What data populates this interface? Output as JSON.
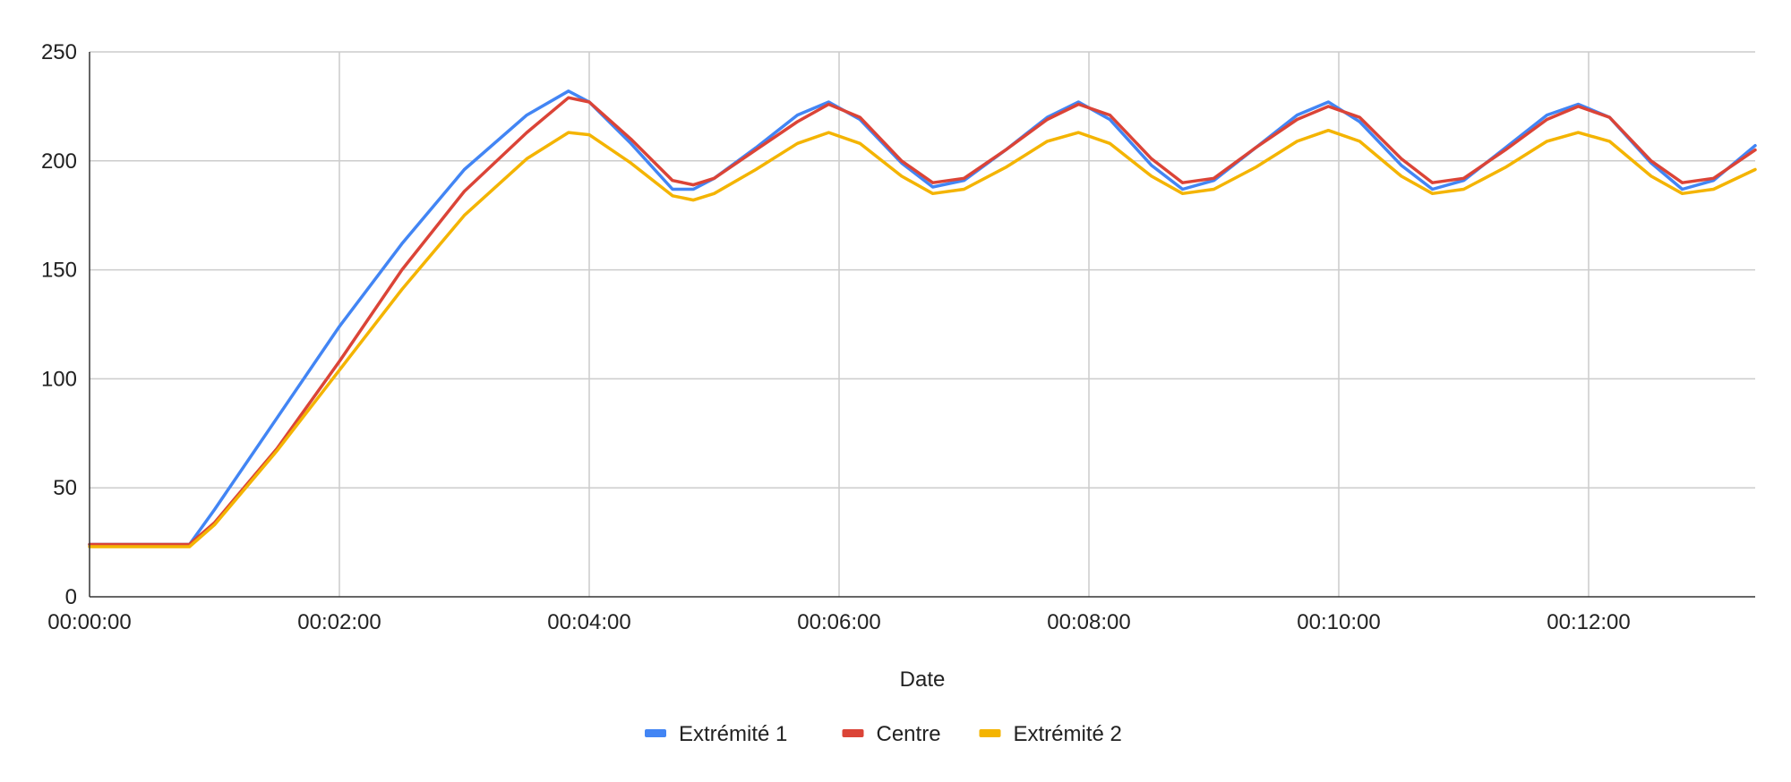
{
  "chart_data": {
    "type": "line",
    "title": "",
    "xlabel": "Date",
    "ylabel": "",
    "x_unit": "time (hh:mm:ss)",
    "xlim": [
      "00:00:00",
      "00:13:20"
    ],
    "ylim": [
      0,
      250
    ],
    "x_ticks": [
      "00:00:00",
      "00:02:00",
      "00:04:00",
      "00:06:00",
      "00:08:00",
      "00:10:00",
      "00:12:00"
    ],
    "y_ticks": [
      "0",
      "50",
      "100",
      "150",
      "200",
      "250"
    ],
    "grid": true,
    "legend_position": "bottom",
    "x": [
      "00:00:00",
      "00:00:45",
      "00:00:48",
      "00:01:00",
      "00:01:30",
      "00:02:00",
      "00:02:30",
      "00:03:00",
      "00:03:30",
      "00:03:50",
      "00:04:00",
      "00:04:20",
      "00:04:40",
      "00:04:50",
      "00:05:00",
      "00:05:20",
      "00:05:40",
      "00:05:55",
      "00:06:10",
      "00:06:30",
      "00:06:45",
      "00:07:00",
      "00:07:20",
      "00:07:40",
      "00:07:55",
      "00:08:10",
      "00:08:30",
      "00:08:45",
      "00:09:00",
      "00:09:20",
      "00:09:40",
      "00:09:55",
      "00:10:10",
      "00:10:30",
      "00:10:45",
      "00:11:00",
      "00:11:20",
      "00:11:40",
      "00:11:55",
      "00:12:10",
      "00:12:30",
      "00:12:45",
      "00:13:00",
      "00:13:20"
    ],
    "series": [
      {
        "name": "Extrémité 1",
        "color": "#4285F4",
        "values": [
          24,
          24,
          24,
          40,
          82,
          124,
          162,
          196,
          221,
          232,
          227,
          208,
          187,
          187,
          192,
          206,
          221,
          227,
          219,
          199,
          188,
          191,
          205,
          220,
          227,
          219,
          198,
          187,
          191,
          206,
          221,
          227,
          218,
          198,
          187,
          191,
          206,
          221,
          226,
          220,
          199,
          187,
          191,
          207
        ]
      },
      {
        "name": "Centre",
        "color": "#DB4437",
        "values": [
          24,
          24,
          24,
          34,
          68,
          108,
          150,
          186,
          213,
          229,
          227,
          210,
          191,
          189,
          192,
          205,
          218,
          226,
          220,
          200,
          190,
          192,
          205,
          219,
          226,
          221,
          201,
          190,
          192,
          206,
          219,
          225,
          220,
          201,
          190,
          192,
          205,
          219,
          225,
          220,
          200,
          190,
          192,
          205
        ]
      },
      {
        "name": "Extrémité 2",
        "color": "#F4B400",
        "values": [
          23,
          23,
          23,
          33,
          67,
          104,
          141,
          175,
          201,
          213,
          212,
          199,
          184,
          182,
          185,
          196,
          208,
          213,
          208,
          193,
          185,
          187,
          197,
          209,
          213,
          208,
          193,
          185,
          187,
          197,
          209,
          214,
          209,
          193,
          185,
          187,
          197,
          209,
          213,
          209,
          193,
          185,
          187,
          196
        ]
      }
    ]
  }
}
